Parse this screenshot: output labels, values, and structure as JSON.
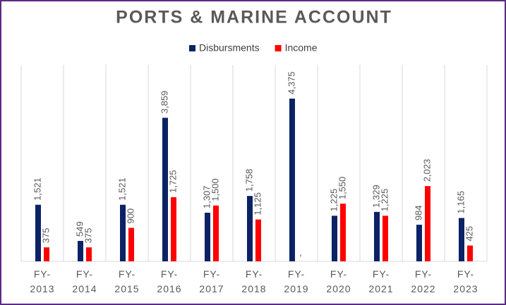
{
  "chart_data": {
    "type": "bar",
    "title": "PORTS & MARINE ACCOUNT",
    "categories": [
      "FY-2013",
      "FY-2014",
      "FY-2015",
      "FY-2016",
      "FY-2017",
      "FY-2018",
      "FY-2019",
      "FY-2020",
      "FY-2021",
      "FY-2022",
      "FY-2023"
    ],
    "series": [
      {
        "name": "Disbursments",
        "color": "#0b2265",
        "values": [
          1521,
          549,
          1521,
          3859,
          1307,
          1758,
          4375,
          1225,
          1329,
          984,
          1165
        ],
        "value_labels": [
          "1,521",
          "549",
          "1,521",
          "3,859",
          "1,307",
          "1,758",
          "4,375",
          "1,225",
          "1,329",
          "984",
          "1,165"
        ]
      },
      {
        "name": "Income",
        "color": "#ff0000",
        "values": [
          375,
          375,
          900,
          1725,
          1500,
          1125,
          0,
          1550,
          1225,
          2023,
          425
        ],
        "value_labels": [
          "375",
          "375",
          "900",
          "1,725",
          "1,500",
          "1,125",
          "-",
          "1,550",
          "1,225",
          "2,023",
          "425"
        ]
      }
    ],
    "legend": "top"
  }
}
